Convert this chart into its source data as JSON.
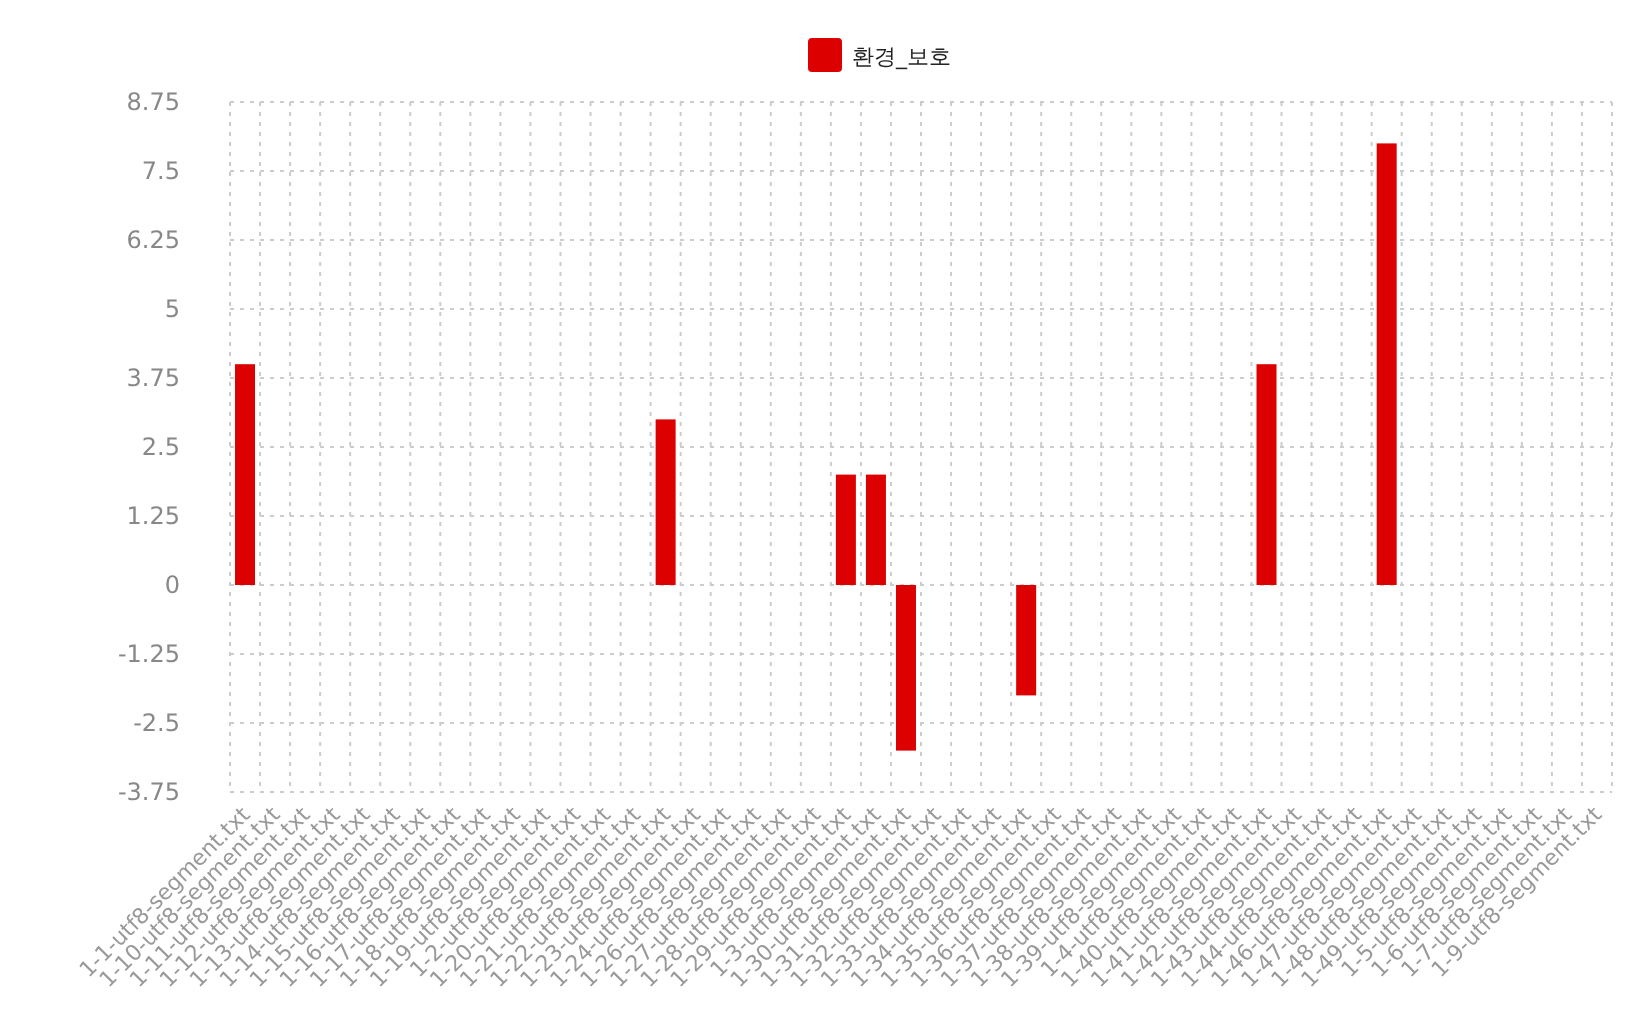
{
  "chart_data": {
    "type": "bar",
    "categories": [
      "1-1-utf8-segment.txt",
      "1-10-utf8-segment.txt",
      "1-11-utf8-segment.txt",
      "1-12-utf8-segment.txt",
      "1-13-utf8-segment.txt",
      "1-14-utf8-segment.txt",
      "1-15-utf8-segment.txt",
      "1-16-utf8-segment.txt",
      "1-17-utf8-segment.txt",
      "1-18-utf8-segment.txt",
      "1-19-utf8-segment.txt",
      "1-2-utf8-segment.txt",
      "1-20-utf8-segment.txt",
      "1-21-utf8-segment.txt",
      "1-22-utf8-segment.txt",
      "1-23-utf8-segment.txt",
      "1-24-utf8-segment.txt",
      "1-26-utf8-segment.txt",
      "1-27-utf8-segment.txt",
      "1-28-utf8-segment.txt",
      "1-29-utf8-segment.txt",
      "1-3-utf8-segment.txt",
      "1-30-utf8-segment.txt",
      "1-31-utf8-segment.txt",
      "1-32-utf8-segment.txt",
      "1-33-utf8-segment.txt",
      "1-34-utf8-segment.txt",
      "1-35-utf8-segment.txt",
      "1-36-utf8-segment.txt",
      "1-37-utf8-segment.txt",
      "1-38-utf8-segment.txt",
      "1-39-utf8-segment.txt",
      "1-4-utf8-segment.txt",
      "1-40-utf8-segment.txt",
      "1-41-utf8-segment.txt",
      "1-42-utf8-segment.txt",
      "1-43-utf8-segment.txt",
      "1-44-utf8-segment.txt",
      "1-46-utf8-segment.txt",
      "1-47-utf8-segment.txt",
      "1-48-utf8-segment.txt",
      "1-49-utf8-segment.txt",
      "1-5-utf8-segment.txt",
      "1-6-utf8-segment.txt",
      "1-7-utf8-segment.txt",
      "1-9-utf8-segment.txt"
    ],
    "series": [
      {
        "name": "환경_보호",
        "color": "#dd0000",
        "values": [
          4,
          0,
          0,
          0,
          0,
          0,
          0,
          0,
          0,
          0,
          0,
          0,
          0,
          0,
          3,
          0,
          0,
          0,
          0,
          0,
          2,
          2,
          -3,
          0,
          0,
          0,
          -2,
          0,
          0,
          0,
          0,
          0,
          0,
          0,
          4,
          0,
          0,
          0,
          8,
          0,
          0,
          0,
          0,
          0,
          0,
          0
        ]
      }
    ],
    "ylim": [
      -3.75,
      8.75
    ],
    "yticks": [
      -3.75,
      -2.5,
      -1.25,
      0,
      1.25,
      2.5,
      3.75,
      5,
      6.25,
      7.5,
      8.75
    ],
    "grid": true,
    "legend": "top"
  }
}
